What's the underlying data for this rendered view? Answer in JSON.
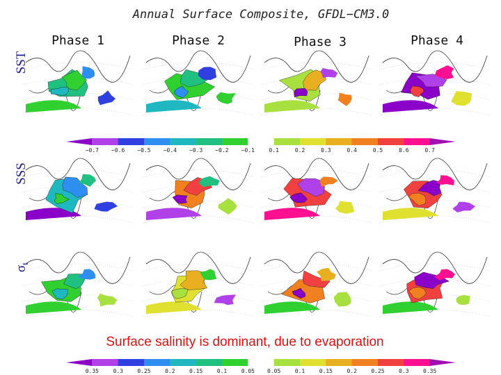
{
  "title": "Annual Surface Composite, GFDL−CM3.0",
  "phases": [
    "Phase 1",
    "Phase 2",
    "Phase 3",
    "Phase 4"
  ],
  "rows": [
    {
      "label": "SST"
    },
    {
      "label": "SSS"
    },
    {
      "symbol": "σ",
      "subscript": "t"
    }
  ],
  "colorbar_top": [
    "−0.7",
    "−0.6",
    "−0.5",
    "−0.4",
    "−0.3",
    "−0.2",
    "−0.1",
    "0.1",
    "0.2",
    "0.3",
    "0.4",
    "0.5",
    "0.6",
    "0.7"
  ],
  "colorbar_bottom": [
    "0.35",
    "0.3",
    "0.25",
    "0.2",
    "0.15",
    "0.1",
    "0.05",
    "0.05",
    "0.1",
    "0.15",
    "0.2",
    "0.25",
    "0.3",
    "0.35"
  ],
  "caption": "Surface salinity is dominant, due to evaporation"
}
